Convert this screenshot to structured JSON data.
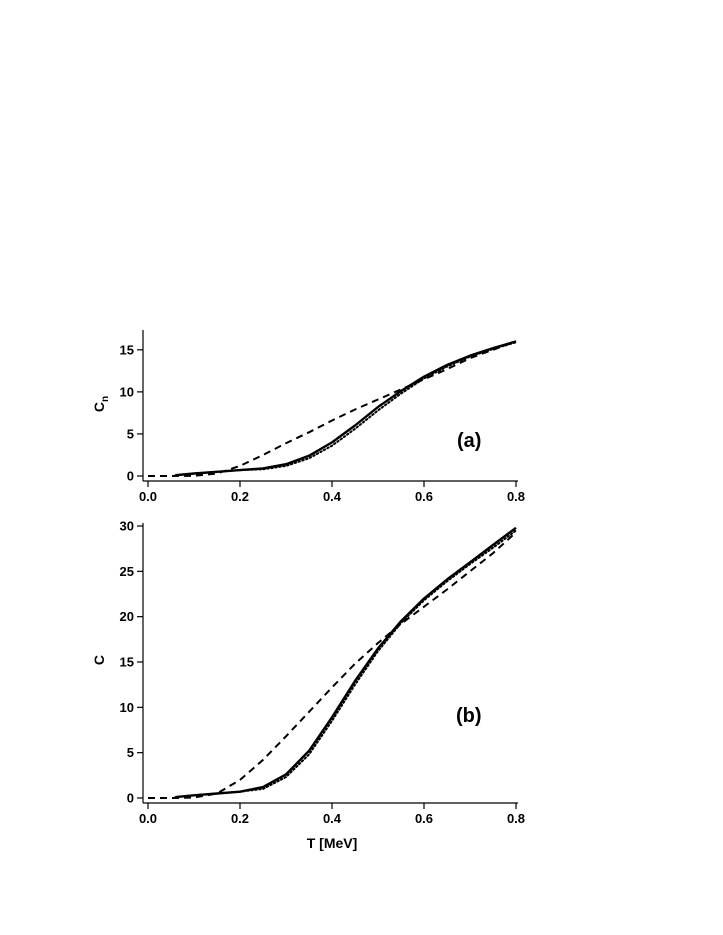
{
  "chart_data": [
    {
      "type": "line",
      "panel_label": "(a)",
      "xlabel": "",
      "ylabel": "C",
      "ylabel_subscript": "n",
      "xlim": [
        0.0,
        0.8
      ],
      "ylim": [
        0,
        17
      ],
      "x_ticks": [
        "0.0",
        "0.2",
        "0.4",
        "0.6",
        "0.8"
      ],
      "y_ticks": [
        "0",
        "5",
        "10",
        "15"
      ],
      "x_tick_values": [
        0.0,
        0.2,
        0.4,
        0.6,
        0.8
      ],
      "y_tick_values": [
        0,
        5,
        10,
        15
      ],
      "series": [
        {
          "style": "dashed",
          "points": [
            [
              0.0,
              0
            ],
            [
              0.05,
              0
            ],
            [
              0.1,
              0.02
            ],
            [
              0.15,
              0.3
            ],
            [
              0.2,
              1.2
            ],
            [
              0.25,
              2.5
            ],
            [
              0.3,
              3.9
            ],
            [
              0.35,
              5.2
            ],
            [
              0.4,
              6.6
            ],
            [
              0.45,
              7.9
            ],
            [
              0.5,
              9.1
            ],
            [
              0.55,
              10.3
            ],
            [
              0.6,
              11.5
            ],
            [
              0.65,
              12.7
            ],
            [
              0.7,
              14.0
            ],
            [
              0.75,
              15.0
            ],
            [
              0.8,
              16.0
            ]
          ]
        },
        {
          "style": "solid",
          "points": [
            [
              0.06,
              0.1
            ],
            [
              0.1,
              0.3
            ],
            [
              0.15,
              0.5
            ],
            [
              0.2,
              0.7
            ],
            [
              0.25,
              0.9
            ],
            [
              0.3,
              1.4
            ],
            [
              0.35,
              2.4
            ],
            [
              0.4,
              4.0
            ],
            [
              0.45,
              6.0
            ],
            [
              0.5,
              8.2
            ],
            [
              0.55,
              10.1
            ],
            [
              0.6,
              11.8
            ],
            [
              0.65,
              13.2
            ],
            [
              0.7,
              14.3
            ],
            [
              0.75,
              15.2
            ],
            [
              0.8,
              16.0
            ]
          ]
        },
        {
          "style": "dotted",
          "points": [
            [
              0.06,
              0.1
            ],
            [
              0.1,
              0.3
            ],
            [
              0.15,
              0.5
            ],
            [
              0.2,
              0.7
            ],
            [
              0.25,
              0.8
            ],
            [
              0.3,
              1.2
            ],
            [
              0.35,
              2.1
            ],
            [
              0.4,
              3.6
            ],
            [
              0.45,
              5.6
            ],
            [
              0.5,
              7.8
            ],
            [
              0.55,
              9.8
            ],
            [
              0.6,
              11.6
            ],
            [
              0.65,
              13.0
            ],
            [
              0.7,
              14.2
            ],
            [
              0.75,
              15.1
            ],
            [
              0.8,
              15.9
            ]
          ]
        }
      ]
    },
    {
      "type": "line",
      "panel_label": "(b)",
      "xlabel": "T [MeV]",
      "ylabel": "C",
      "xlim": [
        0.0,
        0.8
      ],
      "ylim": [
        0,
        30
      ],
      "x_ticks": [
        "0.0",
        "0.2",
        "0.4",
        "0.6",
        "0.8"
      ],
      "y_ticks": [
        "0",
        "5",
        "10",
        "15",
        "20",
        "25",
        "30"
      ],
      "x_tick_values": [
        0.0,
        0.2,
        0.4,
        0.6,
        0.8
      ],
      "y_tick_values": [
        0,
        5,
        10,
        15,
        20,
        25,
        30
      ],
      "series": [
        {
          "style": "dashed",
          "points": [
            [
              0.0,
              0
            ],
            [
              0.05,
              0
            ],
            [
              0.1,
              0.05
            ],
            [
              0.15,
              0.5
            ],
            [
              0.2,
              2.0
            ],
            [
              0.25,
              4.2
            ],
            [
              0.3,
              6.8
            ],
            [
              0.35,
              9.5
            ],
            [
              0.4,
              12.2
            ],
            [
              0.45,
              14.8
            ],
            [
              0.5,
              17.1
            ],
            [
              0.55,
              19.2
            ],
            [
              0.6,
              21.1
            ],
            [
              0.65,
              23.0
            ],
            [
              0.7,
              25.0
            ],
            [
              0.75,
              27.0
            ],
            [
              0.8,
              29.3
            ]
          ]
        },
        {
          "style": "solid",
          "points": [
            [
              0.06,
              0.1
            ],
            [
              0.1,
              0.3
            ],
            [
              0.15,
              0.5
            ],
            [
              0.2,
              0.7
            ],
            [
              0.25,
              1.2
            ],
            [
              0.3,
              2.6
            ],
            [
              0.35,
              5.2
            ],
            [
              0.4,
              8.9
            ],
            [
              0.45,
              12.9
            ],
            [
              0.5,
              16.5
            ],
            [
              0.55,
              19.5
            ],
            [
              0.6,
              22.0
            ],
            [
              0.65,
              24.1
            ],
            [
              0.7,
              26.0
            ],
            [
              0.75,
              27.9
            ],
            [
              0.8,
              29.8
            ]
          ]
        },
        {
          "style": "dotted",
          "points": [
            [
              0.06,
              0.1
            ],
            [
              0.1,
              0.3
            ],
            [
              0.15,
              0.5
            ],
            [
              0.2,
              0.7
            ],
            [
              0.25,
              1.0
            ],
            [
              0.3,
              2.3
            ],
            [
              0.35,
              4.8
            ],
            [
              0.4,
              8.5
            ],
            [
              0.45,
              12.5
            ],
            [
              0.5,
              16.2
            ],
            [
              0.55,
              19.3
            ],
            [
              0.6,
              21.8
            ],
            [
              0.65,
              23.9
            ],
            [
              0.7,
              25.8
            ],
            [
              0.75,
              27.6
            ],
            [
              0.8,
              29.5
            ]
          ]
        }
      ]
    }
  ]
}
